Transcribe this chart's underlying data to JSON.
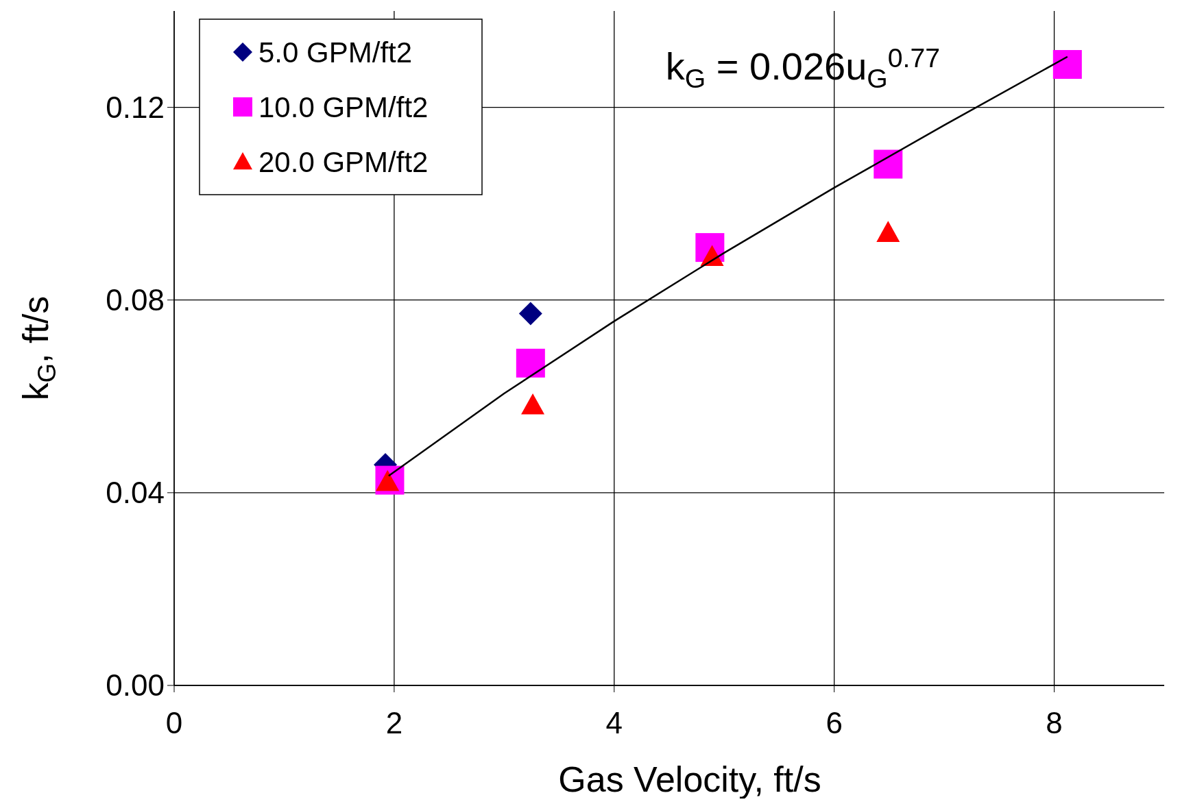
{
  "chart_data": {
    "type": "scatter",
    "xlabel": "Gas Velocity,  ft/s",
    "ylabel": "k$_{G}$, ft/s",
    "xlim": [
      0,
      9
    ],
    "ylim": [
      0,
      0.14
    ],
    "xticks": [
      0,
      2,
      4,
      6,
      8
    ],
    "yticks": [
      {
        "value": 0,
        "label": "0.00"
      },
      {
        "value": 0.04,
        "label": "0.04"
      },
      {
        "value": 0.08,
        "label": "0.08"
      },
      {
        "value": 0.12,
        "label": "0.12"
      }
    ],
    "grid": true,
    "legend": "top left",
    "annotations": [
      "k$_{G}$ = 0.026u$_{G}$$^{0.77}$"
    ],
    "series": [
      {
        "name": "5.0 GPM/ft2",
        "color": "#000080",
        "marker": "diamond",
        "x": [
          1.92,
          3.24
        ],
        "values": [
          0.0458,
          0.0772
        ]
      },
      {
        "name": "10.0 GPM/ft2",
        "color": "#ff00ff",
        "marker": "square",
        "x": [
          1.96,
          3.24,
          4.87,
          6.49,
          8.12
        ],
        "values": [
          0.0426,
          0.0669,
          0.0909,
          0.1082,
          0.1289
        ]
      },
      {
        "name": "20.0 GPM/ft2",
        "color": "#ff0000",
        "marker": "triangle",
        "x": [
          1.94,
          3.26,
          4.89,
          6.49
        ],
        "values": [
          0.0423,
          0.0582,
          0.089,
          0.094
        ]
      },
      {
        "type": "line",
        "color": "#000000",
        "x": [
          1.95,
          3,
          4,
          5,
          6,
          7,
          8.12
        ],
        "values": [
          0.0435,
          0.0606,
          0.0756,
          0.0898,
          0.1033,
          0.1163,
          0.1305
        ]
      }
    ]
  }
}
